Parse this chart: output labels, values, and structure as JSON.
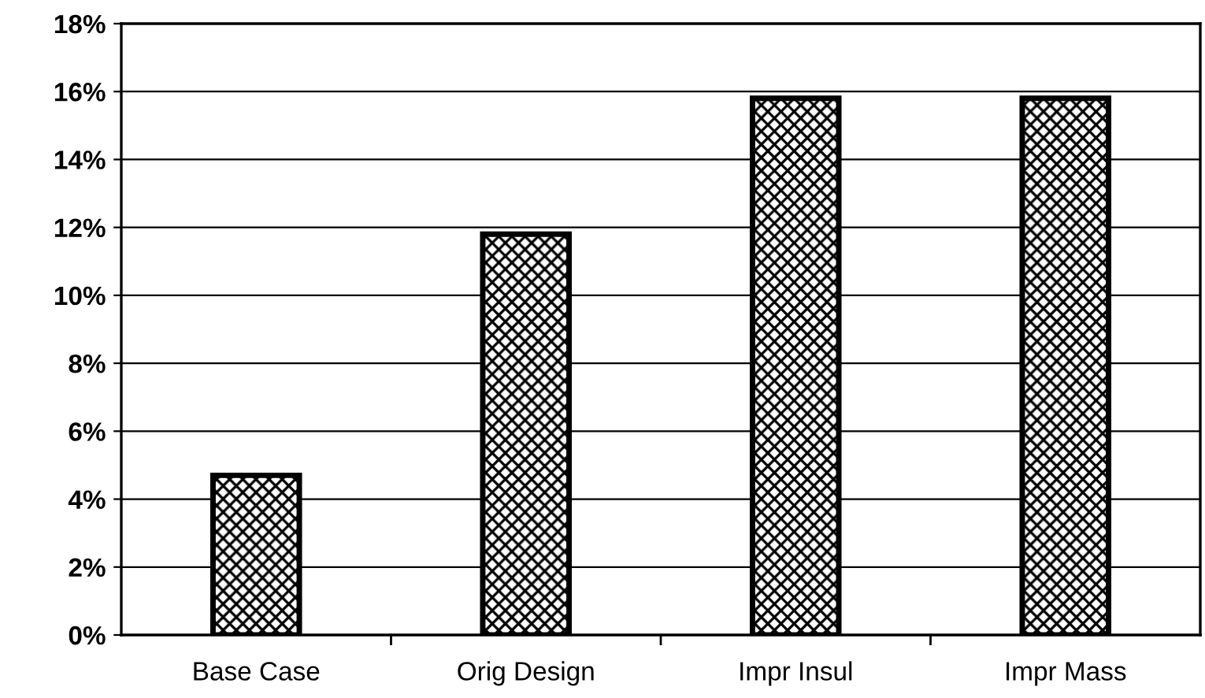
{
  "chart_data": {
    "type": "bar",
    "categories": [
      "Base Case",
      "Orig Design",
      "Impr Insul",
      "Impr Mass"
    ],
    "values": [
      4.7,
      11.8,
      15.8,
      15.8
    ],
    "color": "#000000",
    "ylim": [
      0,
      18
    ],
    "yticks": [
      {
        "value": 0,
        "label": "0%"
      },
      {
        "value": 2,
        "label": "2%"
      },
      {
        "value": 4,
        "label": "4%"
      },
      {
        "value": 6,
        "label": "6%"
      },
      {
        "value": 8,
        "label": "8%"
      },
      {
        "value": 10,
        "label": "10%"
      },
      {
        "value": 12,
        "label": "12%"
      },
      {
        "value": 14,
        "label": "14%"
      },
      {
        "value": 16,
        "label": "16%"
      },
      {
        "value": 18,
        "label": "18%"
      }
    ],
    "grid": "y",
    "legend": false
  }
}
